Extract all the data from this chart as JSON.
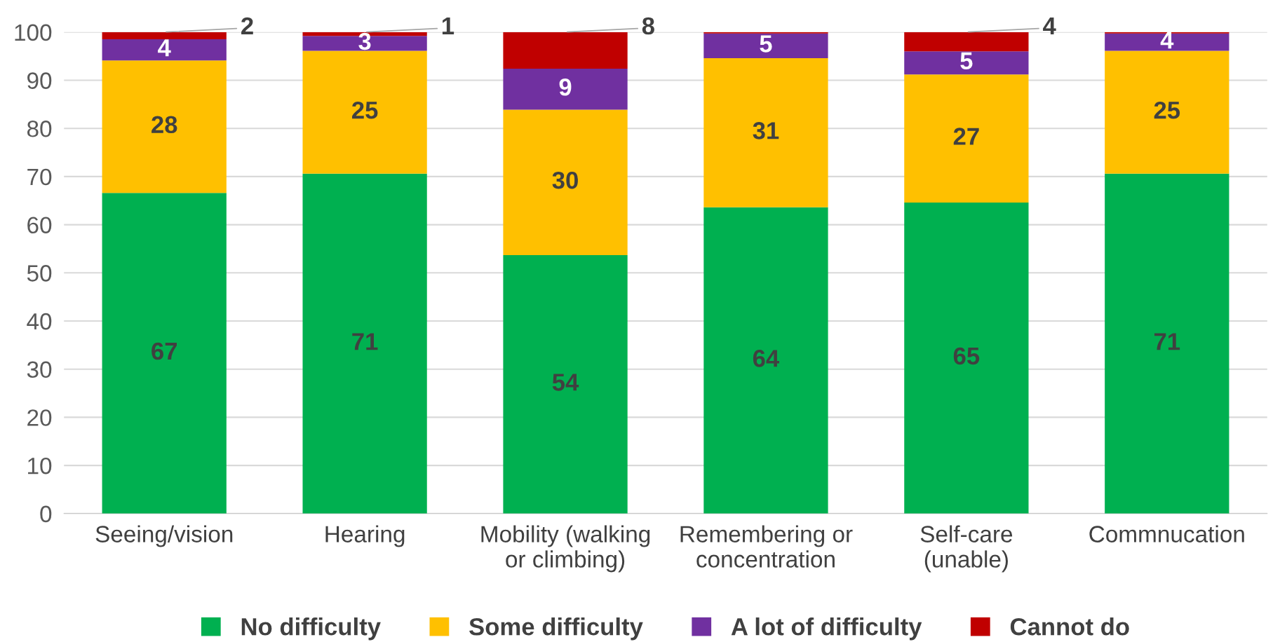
{
  "chart_data": {
    "type": "bar",
    "stacked": true,
    "categories": [
      "Seeing/vision",
      "Hearing",
      "Mobility (walking\nor climbing)",
      "Remembering or\nconcentration",
      "Self-care\n(unable)",
      "Commnucation"
    ],
    "series": [
      {
        "name": "No difficulty",
        "color": "#00b050",
        "values": [
          66.6,
          70.6,
          53.7,
          63.6,
          64.6,
          70.6
        ],
        "value_labels": [
          "67",
          "71",
          "54",
          "64",
          "65",
          "71"
        ]
      },
      {
        "name": "Some difficulty",
        "color": "#ffc000",
        "values": [
          27.5,
          25.5,
          30.2,
          31.0,
          26.6,
          25.5
        ],
        "value_labels": [
          "28",
          "25",
          "30",
          "31",
          "27",
          "25"
        ]
      },
      {
        "name": "A lot of difficulty",
        "color": "#7030a0",
        "values": [
          4.4,
          3.1,
          8.5,
          5.1,
          4.8,
          3.6
        ],
        "value_labels": [
          "4",
          "3",
          "9",
          "5",
          "5",
          "4"
        ]
      },
      {
        "name": "Cannot do",
        "color": "#c00000",
        "values": [
          1.5,
          0.8,
          7.6,
          0.3,
          4.0,
          0.3
        ],
        "value_labels": [
          "2",
          "1",
          "8",
          null,
          "4",
          null
        ]
      }
    ],
    "ylim": [
      0,
      100
    ],
    "yticks": [
      0,
      10,
      20,
      30,
      40,
      50,
      60,
      70,
      80,
      90,
      100
    ],
    "grid": "y",
    "legend": "bottom"
  }
}
